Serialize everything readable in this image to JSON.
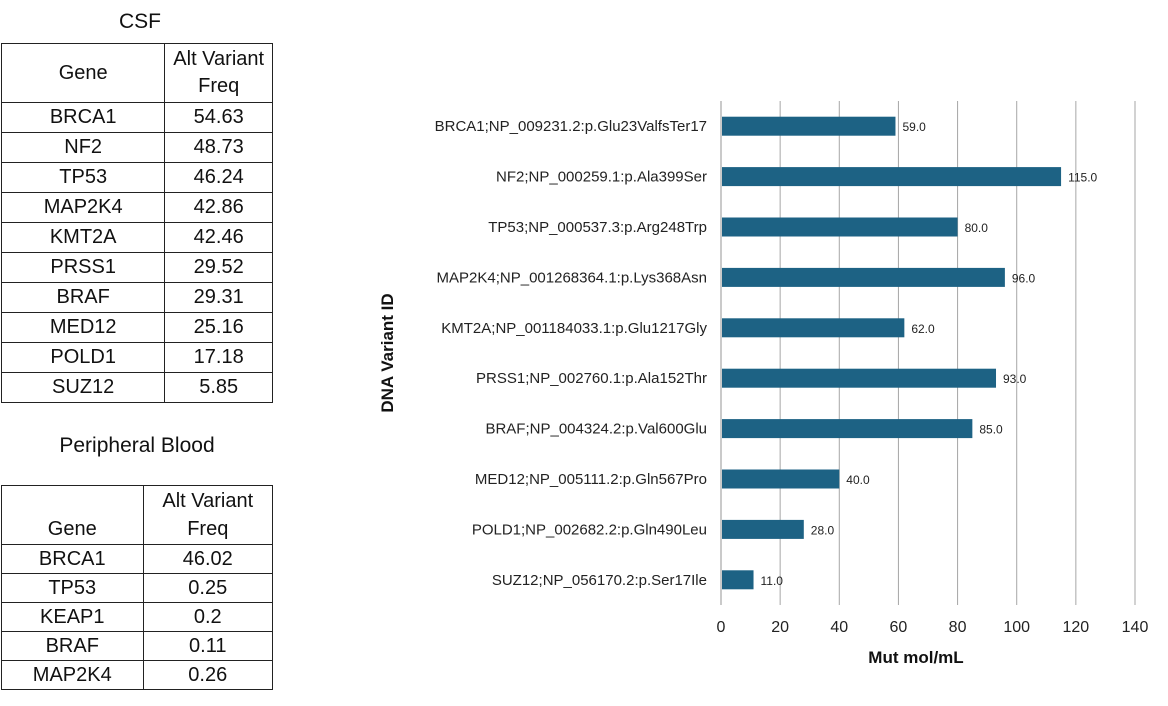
{
  "csf": {
    "title": "CSF",
    "header": {
      "gene": "Gene",
      "freq_line1": "Alt Variant",
      "freq_line2": "Freq"
    },
    "rows": [
      {
        "gene": "BRCA1",
        "freq": "54.63"
      },
      {
        "gene": "NF2",
        "freq": "48.73"
      },
      {
        "gene": "TP53",
        "freq": "46.24"
      },
      {
        "gene": "MAP2K4",
        "freq": "42.86"
      },
      {
        "gene": "KMT2A",
        "freq": "42.46"
      },
      {
        "gene": "PRSS1",
        "freq": "29.52"
      },
      {
        "gene": "BRAF",
        "freq": "29.31"
      },
      {
        "gene": "MED12",
        "freq": "25.16"
      },
      {
        "gene": "POLD1",
        "freq": "17.18"
      },
      {
        "gene": "SUZ12",
        "freq": "5.85"
      }
    ]
  },
  "peripheral_blood": {
    "title": "Peripheral Blood",
    "header": {
      "gene": "Gene",
      "freq_line1": "Alt Variant",
      "freq_line2": "Freq"
    },
    "rows": [
      {
        "gene": "BRCA1",
        "freq": "46.02"
      },
      {
        "gene": "TP53",
        "freq": "0.25"
      },
      {
        "gene": "KEAP1",
        "freq": "0.2"
      },
      {
        "gene": "BRAF",
        "freq": "0.11"
      },
      {
        "gene": "MAP2K4",
        "freq": "0.26"
      }
    ]
  },
  "chart_data": {
    "type": "bar",
    "orientation": "horizontal",
    "categories": [
      "BRCA1;NP_009231.2:p.Glu23ValfsTer17",
      "NF2;NP_000259.1:p.Ala399Ser",
      "TP53;NP_000537.3:p.Arg248Trp",
      "MAP2K4;NP_001268364.1:p.Lys368Asn",
      "KMT2A;NP_001184033.1:p.Glu1217Gly",
      "PRSS1;NP_002760.1:p.Ala152Thr",
      "BRAF;NP_004324.2:p.Val600Glu",
      "MED12;NP_005111.2:p.Gln567Pro",
      "POLD1;NP_002682.2:p.Gln490Leu",
      "SUZ12;NP_056170.2:p.Ser17Ile"
    ],
    "values": [
      59.0,
      115.0,
      80.0,
      96.0,
      62.0,
      93.0,
      85.0,
      40.0,
      28.0,
      11.0
    ],
    "data_labels": [
      "59.0",
      "115.0",
      "80.0",
      "96.0",
      "62.0",
      "93.0",
      "85.0",
      "40.0",
      "28.0",
      "11.0"
    ],
    "xlabel": "Mut mol/mL",
    "ylabel": "DNA Variant ID",
    "xlim": [
      0,
      140
    ],
    "xticks": [
      0,
      20,
      40,
      60,
      80,
      100,
      120,
      140
    ],
    "grid": true,
    "bar_color": "#1d6284",
    "grid_color": "#a6a6a6"
  }
}
